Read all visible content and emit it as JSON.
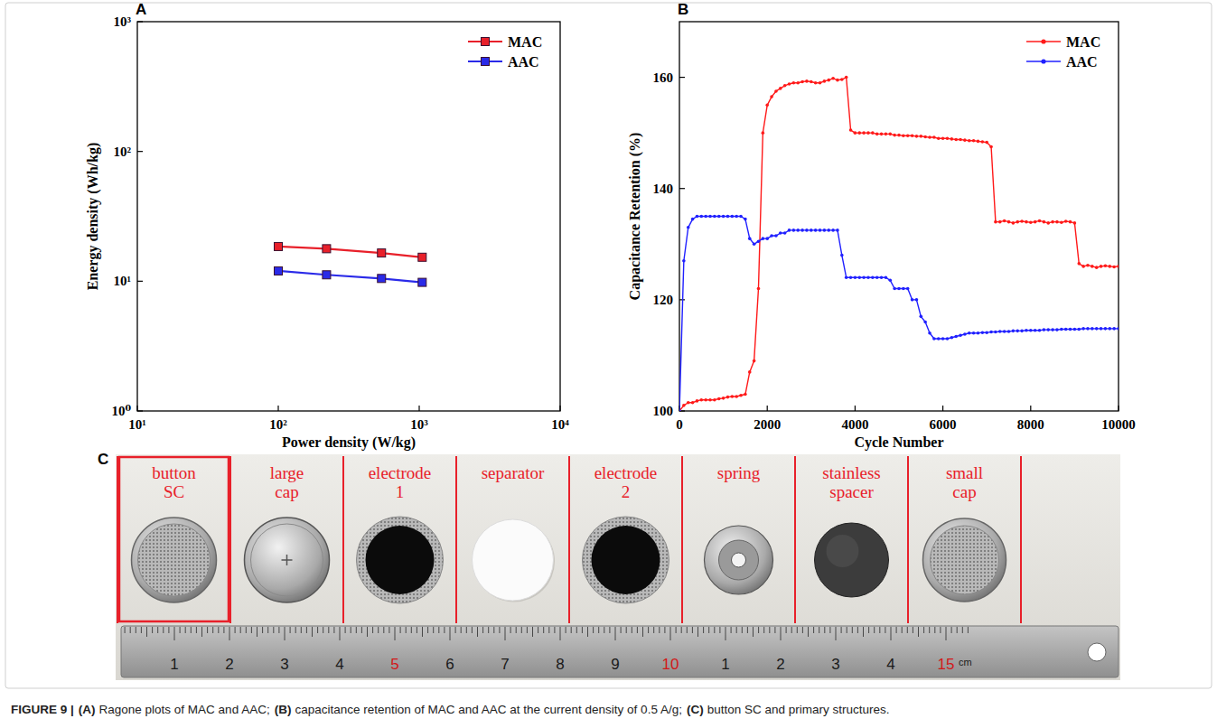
{
  "chart_data": [
    {
      "panel": "A",
      "type": "line",
      "log": true,
      "grid": false,
      "legend": "upper right",
      "marker": "square",
      "line_style": "solid",
      "x_label": "Power density (W/kg)",
      "y_label": "Energy density (Wh/kg)",
      "xlim": [
        10,
        10000
      ],
      "ylim": [
        1,
        1000
      ],
      "xticks": [
        {
          "value": 10,
          "label": "10¹"
        },
        {
          "value": 100,
          "label": "10²"
        },
        {
          "value": 1000,
          "label": "10³"
        },
        {
          "value": 10000,
          "label": "10⁴"
        }
      ],
      "yticks": [
        {
          "value": 1,
          "label": "10⁰"
        },
        {
          "value": 10,
          "label": "10¹"
        },
        {
          "value": 100,
          "label": "10²"
        },
        {
          "value": 1000,
          "label": "10³"
        }
      ],
      "x": [
        100,
        220,
        540,
        1050
      ],
      "series": [
        {
          "name": "MAC",
          "color": "#e8202a",
          "values": [
            18.5,
            17.8,
            16.5,
            15.3
          ]
        },
        {
          "name": "AAC",
          "color": "#2a2ae8",
          "values": [
            12,
            11.2,
            10.5,
            9.8
          ]
        }
      ]
    },
    {
      "panel": "B",
      "type": "line",
      "grid": false,
      "legend": "upper right",
      "marker": "dot",
      "x_label": "Cycle Number",
      "y_label": "Capacitance Retention (%)",
      "xlim": [
        0,
        10000
      ],
      "ylim": [
        100,
        170
      ],
      "xticks": [
        0,
        2000,
        4000,
        6000,
        8000,
        10000
      ],
      "yticks": [
        100,
        120,
        140,
        160
      ],
      "x": [
        0,
        100,
        200,
        300,
        400,
        500,
        600,
        700,
        800,
        900,
        1000,
        1100,
        1200,
        1300,
        1400,
        1500,
        1600,
        1700,
        1800,
        1900,
        2000,
        2100,
        2200,
        2300,
        2400,
        2500,
        2600,
        2700,
        2800,
        2900,
        3000,
        3100,
        3200,
        3300,
        3400,
        3500,
        3600,
        3700,
        3800,
        3900,
        4000,
        4100,
        4200,
        4300,
        4400,
        4500,
        4600,
        4700,
        4800,
        4900,
        5000,
        5100,
        5200,
        5300,
        5400,
        5500,
        5600,
        5700,
        5800,
        5900,
        6000,
        6100,
        6200,
        6300,
        6400,
        6500,
        6600,
        6700,
        6800,
        6900,
        7000,
        7100,
        7200,
        7300,
        7400,
        7500,
        7600,
        7700,
        7800,
        7900,
        8000,
        8100,
        8200,
        8300,
        8400,
        8500,
        8600,
        8700,
        8800,
        8900,
        9000,
        9100,
        9200,
        9300,
        9400,
        9500,
        9600,
        9700,
        9800,
        9900,
        10000
      ],
      "series": [
        {
          "name": "MAC",
          "color": "#ff1a1a",
          "values": [
            100,
            101,
            101.5,
            101.5,
            101.8,
            102,
            102,
            102,
            102,
            102.2,
            102.3,
            102.5,
            102.6,
            102.6,
            102.8,
            103,
            107,
            109,
            122,
            150,
            155,
            156.5,
            157.5,
            158,
            158.5,
            158.8,
            159,
            159,
            159.2,
            159.3,
            159.2,
            159,
            159,
            159.3,
            159.5,
            159.8,
            159.5,
            159.6,
            160,
            150.5,
            150,
            150,
            150,
            150,
            150,
            149.8,
            149.8,
            149.8,
            149.8,
            149.6,
            149.6,
            149.5,
            149.5,
            149.5,
            149.4,
            149.4,
            149.3,
            149.2,
            149.2,
            149,
            149,
            149,
            148.9,
            148.8,
            148.8,
            148.7,
            148.6,
            148.6,
            148.5,
            148.4,
            148.3,
            147.5,
            134,
            134,
            134.2,
            134,
            133.8,
            134,
            134.1,
            134,
            133.9,
            134,
            134.2,
            134,
            133.8,
            134,
            134,
            133.9,
            134.1,
            134,
            133.8,
            126.5,
            126,
            126.2,
            126,
            125.8,
            126,
            126.1,
            126,
            125.9,
            126
          ]
        },
        {
          "name": "AAC",
          "color": "#2020ff",
          "values": [
            100,
            127,
            133,
            134.5,
            135,
            135,
            135,
            135,
            135,
            135,
            135,
            135,
            135,
            135,
            135,
            134.5,
            131,
            130,
            130.5,
            131,
            131,
            131.5,
            131.5,
            132,
            132,
            132.5,
            132.5,
            132.5,
            132.5,
            132.5,
            132.5,
            132.5,
            132.5,
            132.5,
            132.5,
            132.5,
            132.5,
            128,
            124,
            124,
            124,
            124,
            124,
            124,
            124,
            124,
            124,
            124,
            123.5,
            122,
            122,
            122,
            122,
            120,
            120,
            117,
            116,
            114,
            113,
            113,
            113,
            113,
            113.2,
            113.4,
            113.6,
            113.8,
            114,
            114,
            114,
            114.1,
            114.1,
            114.2,
            114.2,
            114.3,
            114.3,
            114.3,
            114.4,
            114.4,
            114.4,
            114.5,
            114.5,
            114.5,
            114.5,
            114.6,
            114.6,
            114.6,
            114.6,
            114.7,
            114.7,
            114.7,
            114.7,
            114.7,
            114.8,
            114.8,
            114.8,
            114.8,
            114.8,
            114.8,
            114.8,
            114.8,
            114.8
          ]
        }
      ]
    }
  ],
  "photo": {
    "panel": "C",
    "items": [
      "button SC",
      "large cap",
      "electrode 1",
      "separator",
      "electrode 2",
      "spring",
      "stainless spacer",
      "small cap"
    ],
    "ruler": {
      "labels": [
        "1",
        "2",
        "3",
        "4",
        "5",
        "6",
        "7",
        "8",
        "9",
        "10",
        "1",
        "2",
        "3",
        "4",
        "15"
      ],
      "unit": "cm"
    }
  },
  "caption": {
    "label": "FIGURE 9 |",
    "parts": [
      {
        "tag": "(A)",
        "text": "Ragone plots of MAC and AAC;"
      },
      {
        "tag": "(B)",
        "text": "capacitance retention of MAC and AAC at the current density of 0.5 A/g;"
      },
      {
        "tag": "(C)",
        "text": "button SC and primary structures."
      }
    ]
  }
}
